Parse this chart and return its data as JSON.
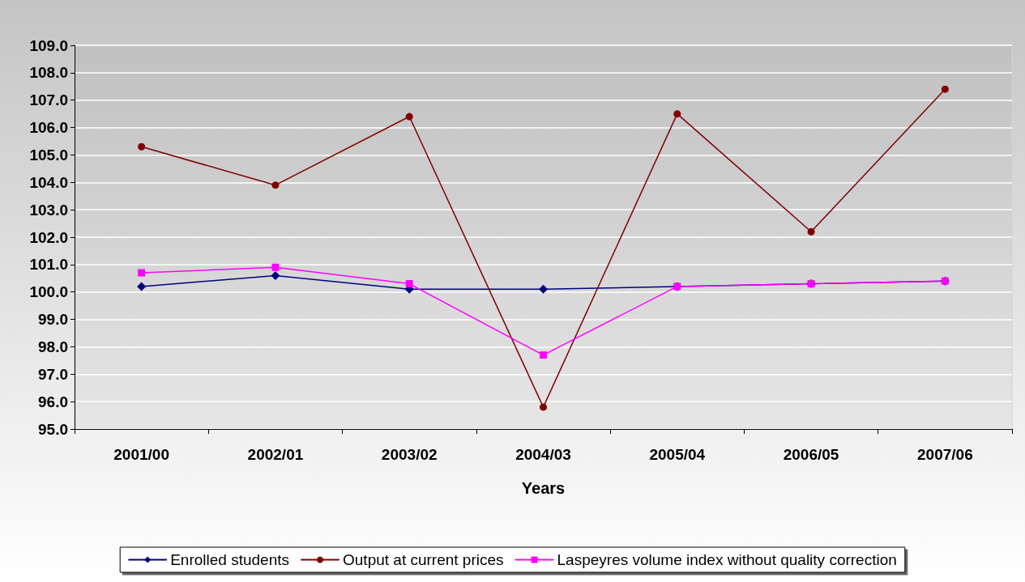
{
  "chart_data": {
    "type": "line",
    "xlabel": "Years",
    "categories": [
      "2001/00",
      "2002/01",
      "2003/02",
      "2004/03",
      "2005/04",
      "2006/05",
      "2007/06"
    ],
    "series": [
      {
        "name": "Enrolled students",
        "color": "#000080",
        "marker": "diamond",
        "values": [
          100.2,
          100.6,
          100.1,
          100.1,
          100.2,
          100.3,
          100.4
        ]
      },
      {
        "name": "Output at current prices",
        "color": "#800000",
        "marker": "circle",
        "values": [
          105.3,
          103.9,
          106.4,
          95.8,
          106.5,
          102.2,
          107.4
        ]
      },
      {
        "name": "Laspeyres volume index without quality correction",
        "color": "#ff00ff",
        "marker": "square",
        "values": [
          100.7,
          100.9,
          100.3,
          97.7,
          100.2,
          100.3,
          100.4
        ]
      }
    ],
    "ylim": [
      95,
      109
    ],
    "yticks": [
      {
        "value": 95,
        "label": "95.0"
      },
      {
        "value": 96,
        "label": "96.0"
      },
      {
        "value": 97,
        "label": "97.0"
      },
      {
        "value": 98,
        "label": "98.0"
      },
      {
        "value": 99,
        "label": "99.0"
      },
      {
        "value": 100,
        "label": "100.0"
      },
      {
        "value": 101,
        "label": "101.0"
      },
      {
        "value": 102,
        "label": "102.0"
      },
      {
        "value": 103,
        "label": "103.0"
      },
      {
        "value": 104,
        "label": "104.0"
      },
      {
        "value": 105,
        "label": "105.0"
      },
      {
        "value": 106,
        "label": "106.0"
      },
      {
        "value": 107,
        "label": "107.0"
      },
      {
        "value": 108,
        "label": "108.0"
      },
      {
        "value": 109,
        "label": "109.0"
      }
    ],
    "grid": "y",
    "legend": "bottom",
    "line_style": "solid"
  }
}
